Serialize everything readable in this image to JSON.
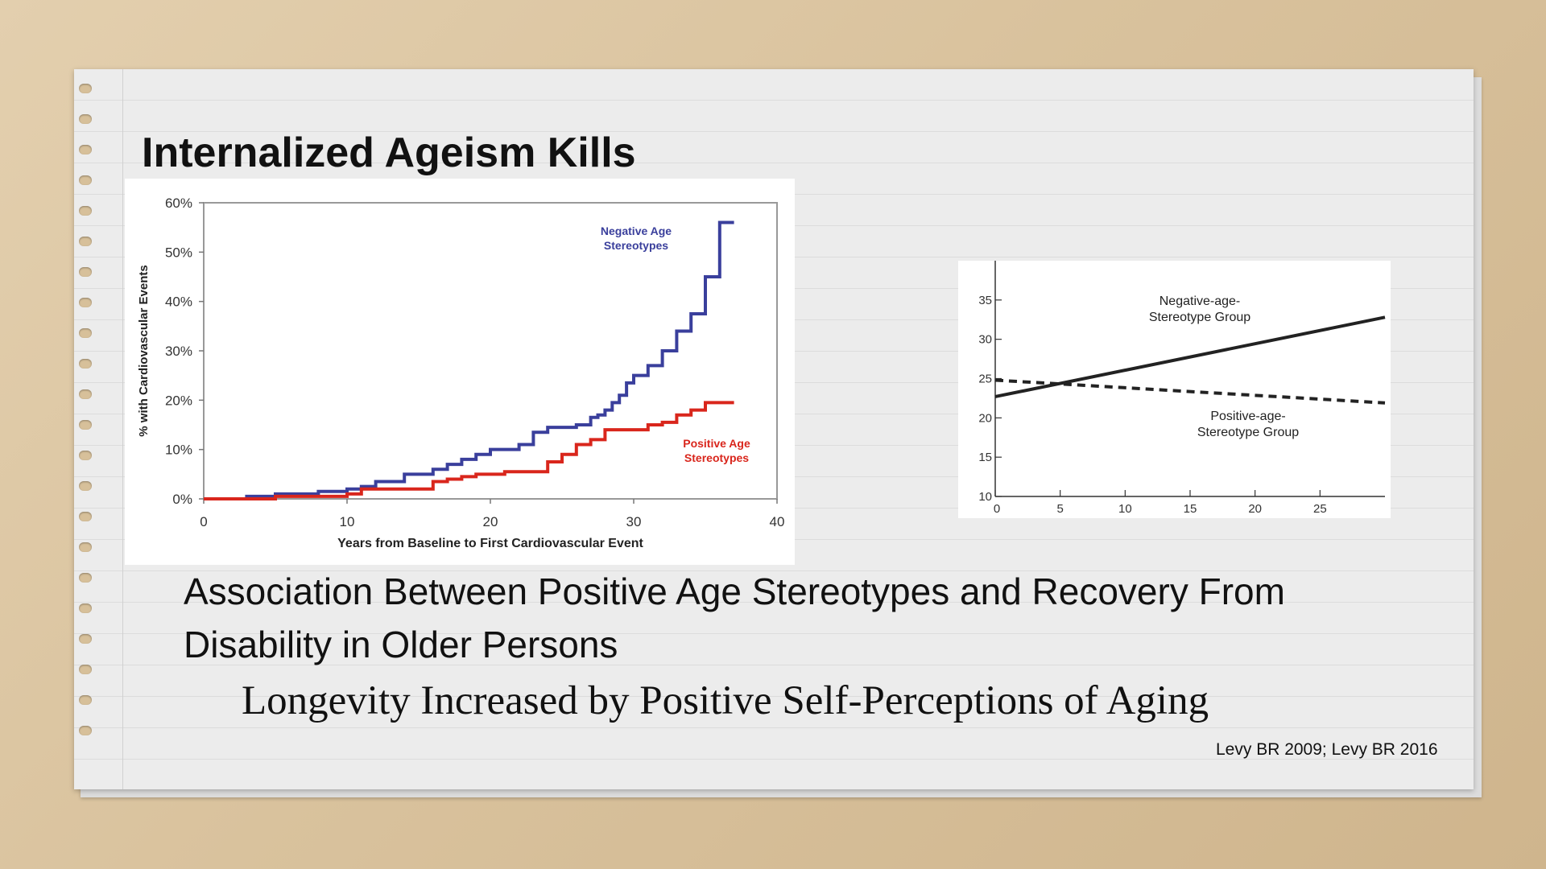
{
  "slide": {
    "title": "Internalized Ageism Kills",
    "caption_1": "Association Between Positive Age Stereotypes and Recovery From Disability in Older Persons",
    "caption_2": "Longevity Increased by Positive Self-Perceptions of Aging",
    "citation": "Levy BR 2009; Levy BR 2016"
  },
  "chart_data": [
    {
      "type": "line",
      "step": true,
      "xlabel": "Years from Baseline to First Cardiovascular Event",
      "ylabel": "% with Cardiovascular Events",
      "xlim": [
        0,
        40
      ],
      "ylim": [
        0,
        60
      ],
      "xticks": [
        "0",
        "10",
        "20",
        "30",
        "40"
      ],
      "yticks": [
        "0%",
        "10%",
        "20%",
        "30%",
        "40%",
        "50%",
        "60%"
      ],
      "grid": false,
      "series": [
        {
          "name": "Negative Age Stereotypes",
          "color": "#3a3f9c",
          "x": [
            0,
            3,
            5,
            8,
            10,
            11,
            12,
            14,
            16,
            17,
            18,
            19,
            20,
            22,
            23,
            24,
            26,
            27,
            27.5,
            28,
            28.5,
            29,
            29.5,
            30,
            31,
            32,
            33,
            34,
            35,
            36,
            37
          ],
          "y": [
            0,
            0.5,
            1,
            1.5,
            2,
            2.5,
            3.5,
            5,
            6,
            7,
            8,
            9,
            10,
            11,
            13.5,
            14.5,
            15,
            16.5,
            17,
            18,
            19.5,
            21,
            23.5,
            25,
            27,
            30,
            34,
            37.5,
            45,
            56,
            56
          ]
        },
        {
          "name": "Positive Age Stereotypes",
          "color": "#d9261c",
          "x": [
            0,
            5,
            10,
            11,
            15,
            16,
            17,
            18,
            19,
            20,
            21,
            22,
            24,
            25,
            26,
            27,
            28,
            30,
            31,
            32,
            33,
            34,
            35,
            36,
            37
          ],
          "y": [
            0,
            0.5,
            1,
            2,
            2,
            3.5,
            4,
            4.5,
            5,
            5,
            5.5,
            5.5,
            7.5,
            9,
            11,
            12,
            14,
            14,
            15,
            15.5,
            17,
            18,
            19.5,
            19.5,
            19.5
          ]
        }
      ]
    },
    {
      "type": "line",
      "xlim": [
        0,
        30
      ],
      "ylim": [
        10,
        40
      ],
      "xticks": [
        "0",
        "5",
        "10",
        "15",
        "20",
        "25"
      ],
      "yticks": [
        "10",
        "15",
        "20",
        "25",
        "30",
        "35"
      ],
      "grid": false,
      "series": [
        {
          "name": "Negative-age-Stereotype Group",
          "style": "solid",
          "color": "#222222",
          "x": [
            0,
            30
          ],
          "y": [
            22.7,
            32.8
          ]
        },
        {
          "name": "Positive-age-Stereotype Group",
          "style": "dashed",
          "color": "#222222",
          "x": [
            0,
            30
          ],
          "y": [
            24.8,
            21.9
          ]
        }
      ]
    }
  ]
}
